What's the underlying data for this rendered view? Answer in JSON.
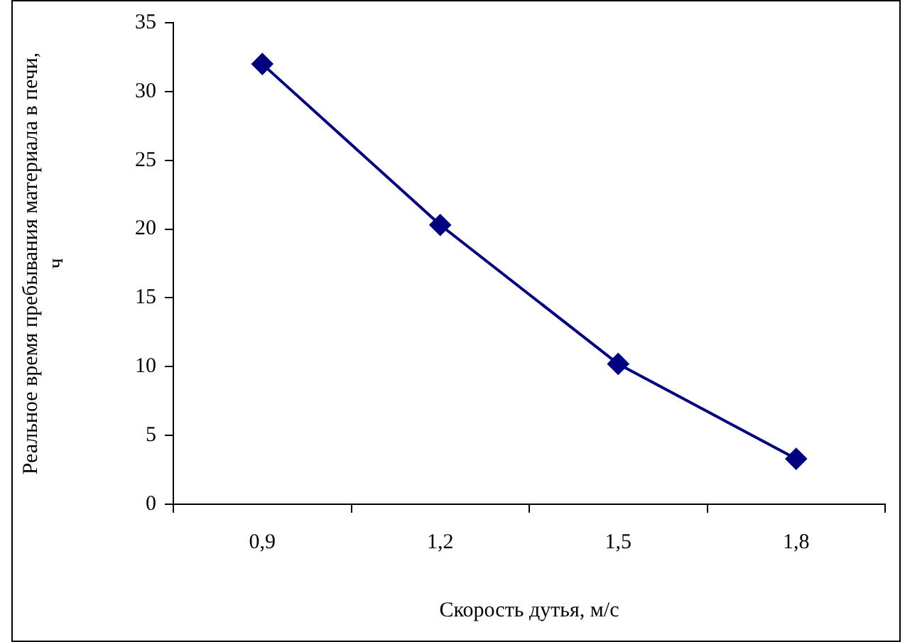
{
  "chart_data": {
    "type": "line",
    "xlabel": "Скорость дутья, м/с",
    "ylabel": "Реальное время пребывания материала в печи, ч",
    "categories": [
      "0,9",
      "1,2",
      "1,5",
      "1,8"
    ],
    "series": [
      {
        "color": "#000080",
        "values": [
          32,
          20.3,
          10.2,
          3.3
        ]
      }
    ],
    "ylim": [
      0,
      35
    ],
    "yticks": [
      0,
      5,
      10,
      15,
      20,
      25,
      30,
      35
    ],
    "grid": false,
    "legend": false,
    "marker": "diamond",
    "line_style": "solid"
  }
}
